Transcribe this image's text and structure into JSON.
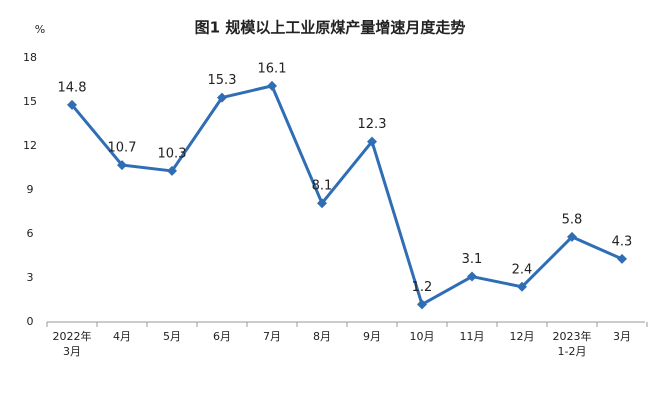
{
  "chart_data": {
    "type": "line",
    "title": "图1  规模以上工业原煤产量增速月度走势",
    "y_label": "%",
    "categories": [
      "2022年\n3月",
      "4月",
      "5月",
      "6月",
      "7月",
      "8月",
      "9月",
      "10月",
      "11月",
      "12月",
      "2023年\n1-2月",
      "3月"
    ],
    "values": [
      14.8,
      10.7,
      10.3,
      15.3,
      16.1,
      8.1,
      12.3,
      1.2,
      3.1,
      2.4,
      5.8,
      4.3
    ],
    "color": "#2f6db5",
    "ylim": [
      0,
      18
    ],
    "yticks": [
      0,
      3,
      6,
      9,
      12,
      15,
      18
    ],
    "grid": false
  }
}
